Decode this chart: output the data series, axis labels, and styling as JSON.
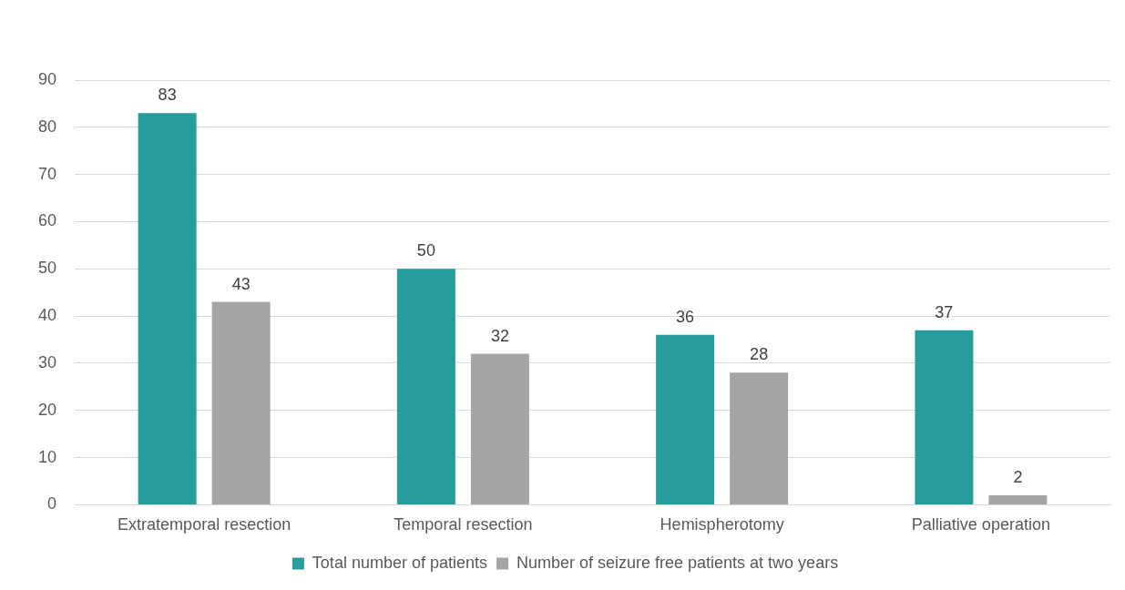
{
  "chart_data": {
    "type": "bar",
    "categories": [
      "Extratemporal resection",
      "Temporal resection",
      "Hemispherotomy",
      "Palliative operation"
    ],
    "series": [
      {
        "name": "Total number of patients",
        "color": "#269c9c",
        "values": [
          83,
          50,
          36,
          37
        ]
      },
      {
        "name": "Number of seizure free patients at two years",
        "color": "#a5a5a8",
        "values": [
          43,
          32,
          28,
          2
        ]
      }
    ],
    "ylim": [
      0,
      90
    ],
    "yticks": [
      0,
      10,
      20,
      30,
      40,
      50,
      60,
      70,
      80,
      90
    ],
    "grid": "y",
    "legend": "bottom",
    "data_labels": true
  }
}
